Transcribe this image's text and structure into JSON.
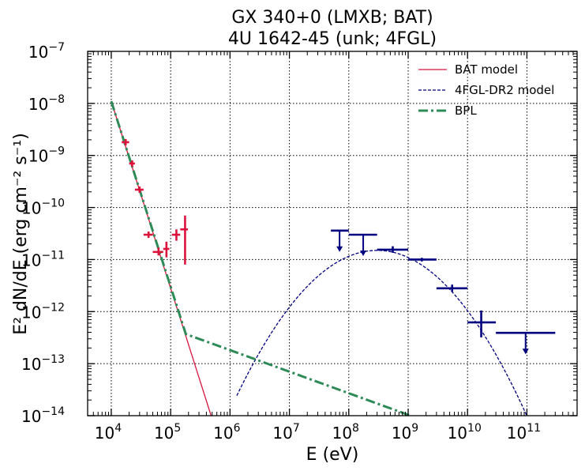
{
  "chart_data": {
    "type": "scatter",
    "title_lines": [
      "GX 340+0 (LMXB; BAT)",
      "4U 1642-45 (unk; 4FGL)"
    ],
    "xlabel": "E (eV)",
    "ylabel": "E² dN/dE (erg cm⁻² s⁻¹)",
    "xscale": "log",
    "yscale": "log",
    "xlim": [
      4000,
      700000000000
    ],
    "ylim": [
      1e-14,
      1e-07
    ],
    "x_ticks": [
      {
        "value": 10000,
        "base": "10",
        "exp": "4"
      },
      {
        "value": 100000,
        "base": "10",
        "exp": "5"
      },
      {
        "value": 1000000,
        "base": "10",
        "exp": "6"
      },
      {
        "value": 10000000,
        "base": "10",
        "exp": "7"
      },
      {
        "value": 100000000,
        "base": "10",
        "exp": "8"
      },
      {
        "value": 1000000000,
        "base": "10",
        "exp": "9"
      },
      {
        "value": 10000000000,
        "base": "10",
        "exp": "10"
      },
      {
        "value": 100000000000,
        "base": "10",
        "exp": "11"
      }
    ],
    "y_ticks": [
      {
        "value": 1e-14,
        "base": "10",
        "exp": "−14"
      },
      {
        "value": 1e-13,
        "base": "10",
        "exp": "−13"
      },
      {
        "value": 1e-12,
        "base": "10",
        "exp": "−12"
      },
      {
        "value": 1e-11,
        "base": "10",
        "exp": "−11"
      },
      {
        "value": 1e-10,
        "base": "10",
        "exp": "−10"
      },
      {
        "value": 1e-09,
        "base": "10",
        "exp": "−9"
      },
      {
        "value": 1e-08,
        "base": "10",
        "exp": "−8"
      },
      {
        "value": 1e-07,
        "base": "10",
        "exp": "−7"
      }
    ],
    "grid": true,
    "legend_position": "top-right",
    "legend": [
      {
        "label": "BAT model",
        "color": "#dc143c",
        "style": "solid"
      },
      {
        "label": "4FGL-DR2 model",
        "color": "#000080",
        "style": "dashed"
      },
      {
        "label": "BPL",
        "color": "#2e8b57",
        "style": "dashdot"
      }
    ],
    "bat_model": {
      "color": "#dc143c",
      "points": [
        [
          10000,
          1.1e-08
        ],
        [
          480000,
          1e-14
        ]
      ]
    },
    "fgl_model": {
      "color": "#000080",
      "log_parabola": {
        "peak_x": 300000000,
        "peak_y": 1.5e-11,
        "curvature": 0.5
      },
      "x_range": [
        1300000,
        120000000000
      ]
    },
    "bpl_model": {
      "color": "#2e8b57",
      "points": [
        [
          10000,
          1.1e-08
        ],
        [
          180000,
          3.7e-13
        ],
        [
          1100000000,
          1e-14
        ]
      ]
    },
    "bat_points": {
      "color": "#dc143c",
      "points": [
        {
          "x": 17500,
          "xlo": 15000,
          "xhi": 20000,
          "y": 1.8e-09
        },
        {
          "x": 22500,
          "xlo": 20000,
          "xhi": 25000,
          "y": 7e-10
        },
        {
          "x": 30000,
          "xlo": 25000,
          "xhi": 35000,
          "y": 2.2e-10
        },
        {
          "x": 42500,
          "xlo": 35000,
          "xhi": 50000,
          "y": 3e-11
        },
        {
          "x": 62500,
          "xlo": 50000,
          "xhi": 75000,
          "y": 1.4e-11,
          "ylo": 1.2e-11,
          "yhi": 1.7e-11
        },
        {
          "x": 85000,
          "xlo": 75000,
          "xhi": 95000,
          "y": 1.6e-11,
          "ylo": 1.1e-11,
          "yhi": 2.2e-11
        },
        {
          "x": 125000,
          "xlo": 105000,
          "xhi": 145000,
          "y": 3e-11,
          "ylo": 2.3e-11,
          "yhi": 3.8e-11
        },
        {
          "x": 175000,
          "xlo": 145000,
          "xhi": 195000,
          "y": 3.8e-11,
          "ylo": 8e-12,
          "yhi": 7e-11
        }
      ]
    },
    "fgl_points": {
      "color": "#000080",
      "points": [
        {
          "x": 70000000,
          "xlo": 50000000,
          "xhi": 100000000,
          "y": 3.6e-11,
          "upper_limit": true
        },
        {
          "x": 175000000,
          "xlo": 100000000,
          "xhi": 300000000,
          "y": 3e-11,
          "upper_limit": true
        },
        {
          "x": 550000000,
          "xlo": 300000000,
          "xhi": 1000000000,
          "y": 1.55e-11,
          "ylo": 1.35e-11,
          "yhi": 1.8e-11
        },
        {
          "x": 1700000000,
          "xlo": 1000000000,
          "xhi": 3000000000,
          "y": 1e-11,
          "ylo": 9.2e-12,
          "yhi": 1.08e-11
        },
        {
          "x": 5500000000,
          "xlo": 3000000000,
          "xhi": 10000000000,
          "y": 2.8e-12,
          "ylo": 2.4e-12,
          "yhi": 3.3e-12
        },
        {
          "x": 17000000000,
          "xlo": 10000000000,
          "xhi": 30000000000,
          "y": 6.2e-13,
          "ylo": 3.2e-13,
          "yhi": 1.05e-12
        },
        {
          "x": 95000000000,
          "xlo": 30000000000,
          "xhi": 300000000000,
          "y": 3.9e-13,
          "upper_limit": true
        }
      ]
    }
  }
}
